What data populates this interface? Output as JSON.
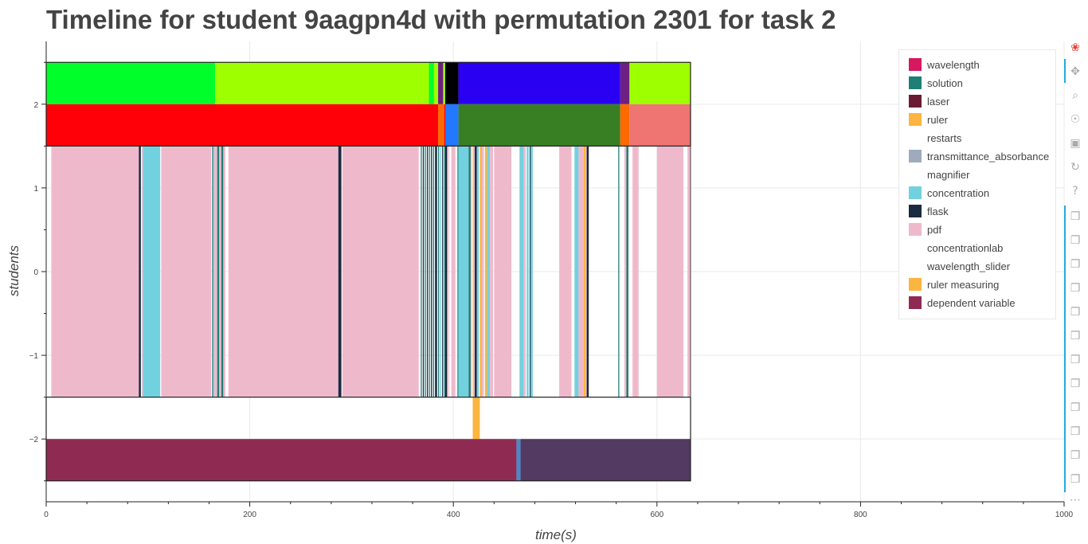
{
  "title": "Timeline for student 9aagpn4d with permutation 2301 for task 2",
  "chart_data": {
    "type": "timeline",
    "xlabel": "time(s)",
    "ylabel": "students",
    "xlim": [
      0,
      1000
    ],
    "ylim": [
      -2.75,
      2.75
    ],
    "x_ticks": [
      "0",
      "200",
      "400",
      "600",
      "800",
      "1000"
    ],
    "y_ticks": [
      "2",
      "1",
      "0",
      "−1",
      "−2"
    ],
    "x_tick_values": [
      0,
      200,
      400,
      600,
      800,
      1000
    ],
    "y_tick_values": [
      2,
      1,
      0,
      -1,
      -2
    ],
    "grid": true,
    "legend_position": "top-right",
    "legend": [
      {
        "label": "wavelength",
        "color": "#d6185e"
      },
      {
        "label": "solution",
        "color": "#1f7f77"
      },
      {
        "label": "laser",
        "color": "#6b1a34"
      },
      {
        "label": "ruler",
        "color": "#fbb540"
      },
      {
        "label": "restarts",
        "color": "#ffffff"
      },
      {
        "label": "transmittance_absorbance",
        "color": "#9fabbd"
      },
      {
        "label": "magnifier",
        "color": "#ffffff"
      },
      {
        "label": "concentration",
        "color": "#72d1de"
      },
      {
        "label": "flask",
        "color": "#1b2b40"
      },
      {
        "label": "pdf",
        "color": "#efb9cc"
      },
      {
        "label": "concentrationlab",
        "color": "#ffffff"
      },
      {
        "label": "wavelength_slider",
        "color": "#ffffff"
      },
      {
        "label": "ruler measuring",
        "color": "#fbb540"
      },
      {
        "label": "dependent variable",
        "color": "#8f2b52"
      }
    ],
    "rows": [
      {
        "y0": 2.0,
        "y1": 2.5,
        "segments": [
          {
            "start": 0,
            "end": 166,
            "color": "#00ff2a"
          },
          {
            "start": 166,
            "end": 376,
            "color": "#9eff00"
          },
          {
            "start": 376,
            "end": 381,
            "color": "#00ff2a"
          },
          {
            "start": 381,
            "end": 385,
            "color": "#9eff00"
          },
          {
            "start": 385,
            "end": 390,
            "color": "#6d1f82"
          },
          {
            "start": 390,
            "end": 392,
            "color": "#9eff00"
          },
          {
            "start": 392,
            "end": 405,
            "color": "#000000"
          },
          {
            "start": 405,
            "end": 564,
            "color": "#2a00f2"
          },
          {
            "start": 564,
            "end": 573,
            "color": "#6d1f82"
          },
          {
            "start": 573,
            "end": 633,
            "color": "#9eff00"
          }
        ]
      },
      {
        "y0": 1.5,
        "y1": 2.0,
        "segments": [
          {
            "start": 0,
            "end": 385,
            "color": "#ff0008"
          },
          {
            "start": 385,
            "end": 391,
            "color": "#ff6a00"
          },
          {
            "start": 391,
            "end": 392,
            "color": "#ff0008"
          },
          {
            "start": 392,
            "end": 405,
            "color": "#2378ff"
          },
          {
            "start": 405,
            "end": 564,
            "color": "#387f23"
          },
          {
            "start": 564,
            "end": 573,
            "color": "#ff6a00"
          },
          {
            "start": 573,
            "end": 633,
            "color": "#ee7572"
          }
        ]
      },
      {
        "y0": -1.5,
        "y1": 1.5,
        "segments": [
          {
            "start": 5,
            "end": 91,
            "color": "#efb9cc"
          },
          {
            "start": 91,
            "end": 93,
            "color": "#1b2b40"
          },
          {
            "start": 94,
            "end": 95,
            "color": "#efb9cc"
          },
          {
            "start": 95,
            "end": 112,
            "color": "#72d1de"
          },
          {
            "start": 113,
            "end": 162,
            "color": "#efb9cc"
          },
          {
            "start": 163,
            "end": 164,
            "color": "#1f7f77"
          },
          {
            "start": 164,
            "end": 165,
            "color": "#72d1de"
          },
          {
            "start": 165,
            "end": 168,
            "color": "#efb9cc"
          },
          {
            "start": 168,
            "end": 170,
            "color": "#1f7f77"
          },
          {
            "start": 170,
            "end": 172,
            "color": "#efb9cc"
          },
          {
            "start": 172,
            "end": 174,
            "color": "#1f7f77"
          },
          {
            "start": 174,
            "end": 176,
            "color": "#efb9cc"
          },
          {
            "start": 179,
            "end": 287,
            "color": "#efb9cc"
          },
          {
            "start": 287,
            "end": 290,
            "color": "#1b2b40"
          },
          {
            "start": 291,
            "end": 366,
            "color": "#efb9cc"
          },
          {
            "start": 368,
            "end": 369,
            "color": "#1f7f77"
          },
          {
            "start": 370,
            "end": 371,
            "color": "#1b2b40"
          },
          {
            "start": 372,
            "end": 373,
            "color": "#1f7f77"
          },
          {
            "start": 374,
            "end": 375,
            "color": "#1b2b40"
          },
          {
            "start": 376,
            "end": 377,
            "color": "#1f7f77"
          },
          {
            "start": 378,
            "end": 379,
            "color": "#1b2b40"
          },
          {
            "start": 380,
            "end": 381,
            "color": "#1f7f77"
          },
          {
            "start": 382,
            "end": 384,
            "color": "#1b2b40"
          },
          {
            "start": 385,
            "end": 386,
            "color": "#1f7f77"
          },
          {
            "start": 387,
            "end": 388,
            "color": "#72d1de"
          },
          {
            "start": 389,
            "end": 390,
            "color": "#1b2b40"
          },
          {
            "start": 391,
            "end": 392,
            "color": "#1f7f77"
          },
          {
            "start": 392,
            "end": 394,
            "color": "#1b2b40"
          },
          {
            "start": 395,
            "end": 396,
            "color": "#efb9cc"
          },
          {
            "start": 398,
            "end": 402,
            "color": "#efb9cc"
          },
          {
            "start": 404,
            "end": 405,
            "color": "#1f7f77"
          },
          {
            "start": 405,
            "end": 415,
            "color": "#72d1de"
          },
          {
            "start": 415,
            "end": 417,
            "color": "#1f7f77"
          },
          {
            "start": 417,
            "end": 418,
            "color": "#efb9cc"
          },
          {
            "start": 419,
            "end": 420,
            "color": "#fbb540"
          },
          {
            "start": 420,
            "end": 421,
            "color": "#efb9cc"
          },
          {
            "start": 421,
            "end": 423,
            "color": "#1b2b40"
          },
          {
            "start": 423,
            "end": 425,
            "color": "#72d1de"
          },
          {
            "start": 426,
            "end": 428,
            "color": "#fbb540"
          },
          {
            "start": 428,
            "end": 430,
            "color": "#efb9cc"
          },
          {
            "start": 431,
            "end": 433,
            "color": "#fbb540"
          },
          {
            "start": 433,
            "end": 436,
            "color": "#72d1de"
          },
          {
            "start": 436,
            "end": 439,
            "color": "#efb9cc"
          },
          {
            "start": 440,
            "end": 457,
            "color": "#efb9cc"
          },
          {
            "start": 465,
            "end": 469,
            "color": "#72d1de"
          },
          {
            "start": 469,
            "end": 471,
            "color": "#efb9cc"
          },
          {
            "start": 472,
            "end": 474,
            "color": "#72d1de"
          },
          {
            "start": 475,
            "end": 476,
            "color": "#1b2b40"
          },
          {
            "start": 476,
            "end": 478,
            "color": "#72d1de"
          },
          {
            "start": 504,
            "end": 516,
            "color": "#efb9cc"
          },
          {
            "start": 519,
            "end": 523,
            "color": "#72d1de"
          },
          {
            "start": 523,
            "end": 528,
            "color": "#efb9cc"
          },
          {
            "start": 528,
            "end": 530,
            "color": "#fbb540"
          },
          {
            "start": 530,
            "end": 531,
            "color": "#efb9cc"
          },
          {
            "start": 531,
            "end": 533,
            "color": "#1b2b40"
          },
          {
            "start": 562,
            "end": 563,
            "color": "#1f7f77"
          },
          {
            "start": 568,
            "end": 570,
            "color": "#efb9cc"
          },
          {
            "start": 570,
            "end": 572,
            "color": "#1f7f77"
          },
          {
            "start": 576,
            "end": 582,
            "color": "#efb9cc"
          },
          {
            "start": 600,
            "end": 626,
            "color": "#efb9cc"
          },
          {
            "start": 630,
            "end": 633,
            "color": "#efb9cc"
          }
        ]
      },
      {
        "y0": -2.0,
        "y1": -1.5,
        "segments": [
          {
            "start": 419,
            "end": 426,
            "color": "#fbb540"
          }
        ]
      },
      {
        "y0": -2.5,
        "y1": -2.0,
        "segments": [
          {
            "start": 0,
            "end": 462,
            "color": "#8f2b52"
          },
          {
            "start": 462,
            "end": 466,
            "color": "#4f86c6"
          },
          {
            "start": 466,
            "end": 633,
            "color": "#523a62"
          }
        ]
      }
    ],
    "row_outlines": [
      {
        "y0": 1.5,
        "y1": 2.5,
        "start": 0,
        "end": 633
      },
      {
        "y0": -2.5,
        "y1": -1.5,
        "start": 0,
        "end": 633
      }
    ]
  },
  "toolbar": {
    "tools": [
      {
        "name": "bokeh-logo-icon",
        "glyph": "❀"
      },
      {
        "name": "pan-icon",
        "glyph": "✥"
      },
      {
        "name": "box-zoom-icon",
        "glyph": "⌕"
      },
      {
        "name": "wheel-zoom-icon",
        "glyph": "☉"
      },
      {
        "name": "save-icon",
        "glyph": "▣"
      },
      {
        "name": "reset-icon",
        "glyph": "↻"
      },
      {
        "name": "help-icon",
        "glyph": "?"
      },
      {
        "name": "hover-icon",
        "glyph": "❐"
      },
      {
        "name": "hover-icon",
        "glyph": "❐"
      },
      {
        "name": "hover-icon",
        "glyph": "❐"
      },
      {
        "name": "hover-icon",
        "glyph": "❐"
      },
      {
        "name": "hover-icon",
        "glyph": "❐"
      },
      {
        "name": "hover-icon",
        "glyph": "❐"
      },
      {
        "name": "hover-icon",
        "glyph": "❐"
      },
      {
        "name": "hover-icon",
        "glyph": "❐"
      },
      {
        "name": "hover-icon",
        "glyph": "❐"
      },
      {
        "name": "hover-icon",
        "glyph": "❐"
      },
      {
        "name": "hover-icon",
        "glyph": "❐"
      },
      {
        "name": "hover-icon",
        "glyph": "❐"
      },
      {
        "name": "more-icon",
        "glyph": "⋯"
      }
    ]
  }
}
